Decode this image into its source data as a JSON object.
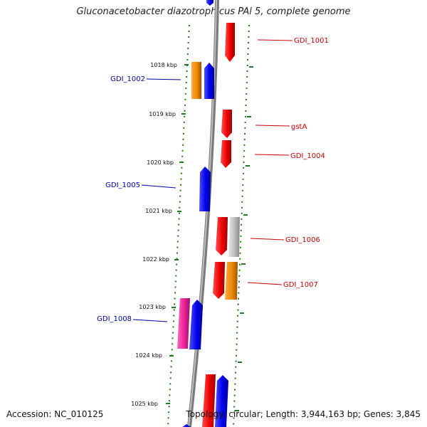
{
  "title": "Gluconacetobacter diazotrophicus PAl 5, complete genome",
  "footer": {
    "accession": "Accession: NC_010125",
    "topology": "Topology: circular; Length: 3,944,163 bp; Genes: 3,845"
  },
  "colors": {
    "backbone": "#7a7a7a",
    "tick": "#1f7a1f",
    "label_red": "#cc0000",
    "label_blue": "#0000aa",
    "red": "#ee0000",
    "blue": "#0000ee",
    "orange": "#ee8800",
    "gray": "#bbbbbb",
    "magenta": "#ee2299"
  },
  "scale_labels": [
    "1018 kbp",
    "1019 kbp",
    "1020 kbp",
    "1021 kbp",
    "1022 kbp",
    "1023 kbp",
    "1024 kbp",
    "1025 kbp"
  ],
  "gene_labels": [
    {
      "id": "GDI_1001",
      "text": "GDI_1001",
      "side": "right"
    },
    {
      "id": "GDI_1002",
      "text": "GDI_1002",
      "side": "left"
    },
    {
      "id": "gstA",
      "text": "gstA",
      "side": "right"
    },
    {
      "id": "GDI_1004",
      "text": "GDI_1004",
      "side": "right"
    },
    {
      "id": "GDI_1005",
      "text": "GDI_1005",
      "side": "left"
    },
    {
      "id": "GDI_1006",
      "text": "GDI_1006",
      "side": "right"
    },
    {
      "id": "GDI_1007",
      "text": "GDI_1007",
      "side": "right"
    },
    {
      "id": "GDI_1008",
      "text": "GDI_1008",
      "side": "left"
    }
  ]
}
